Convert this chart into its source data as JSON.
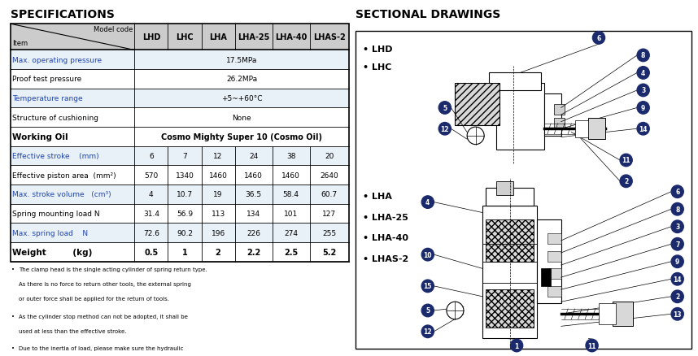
{
  "title_left": "SPECIFICATIONS",
  "title_right": "SECTIONAL DRAWINGS",
  "header_row": [
    "",
    "LHD",
    "LHC",
    "LHA",
    "LHA-25",
    "LHA-40",
    "LHAS-2"
  ],
  "header_label_top": "Model code",
  "header_label_bottom": "Item",
  "rows": [
    {
      "label": "Max. operating pressure",
      "values": [
        "17.5MPa"
      ],
      "span": true,
      "bold": false,
      "blue": true,
      "bg": "#e8f0f8"
    },
    {
      "label": "Proof test pressure",
      "values": [
        "26.2MPa"
      ],
      "span": true,
      "bold": false,
      "blue": false,
      "bg": "#ffffff"
    },
    {
      "label": "Temperature range",
      "values": [
        "+5~+60°C"
      ],
      "span": true,
      "bold": false,
      "blue": true,
      "bg": "#e8f0f8"
    },
    {
      "label": "Structure of cushioning",
      "values": [
        "None"
      ],
      "span": true,
      "bold": false,
      "blue": false,
      "bg": "#ffffff"
    },
    {
      "label": "Working Oil",
      "values": [
        "Cosmo Mighty Super 10 (Cosmo Oil)"
      ],
      "span": true,
      "bold": true,
      "blue": false,
      "bg": "#ffffff"
    },
    {
      "label": "Effective stroke    (mm)",
      "values": [
        "6",
        "7",
        "12",
        "24",
        "38",
        "20"
      ],
      "span": false,
      "bold": false,
      "blue": true,
      "bg": "#e8f0f8"
    },
    {
      "label": "Effective piston area  (mm²)",
      "values": [
        "570",
        "1340",
        "1460",
        "1460",
        "1460",
        "2640"
      ],
      "span": false,
      "bold": false,
      "blue": false,
      "bg": "#ffffff"
    },
    {
      "label": "Max. stroke volume   (cm³)",
      "values": [
        "4",
        "10.7",
        "19",
        "36.5",
        "58.4",
        "60.7"
      ],
      "span": false,
      "bold": false,
      "blue": true,
      "bg": "#e8f0f8"
    },
    {
      "label": "Spring mounting load N",
      "values": [
        "31.4",
        "56.9",
        "113",
        "134",
        "101",
        "127"
      ],
      "span": false,
      "bold": false,
      "blue": false,
      "bg": "#ffffff"
    },
    {
      "label": "Max. spring load    N",
      "values": [
        "72.6",
        "90.2",
        "196",
        "226",
        "274",
        "255"
      ],
      "span": false,
      "bold": false,
      "blue": true,
      "bg": "#e8f0f8"
    },
    {
      "label": "Weight         (kg)",
      "values": [
        "0.5",
        "1",
        "2",
        "2.2",
        "2.5",
        "5.2"
      ],
      "span": false,
      "bold": true,
      "blue": false,
      "bg": "#ffffff"
    }
  ],
  "notes": [
    "The clamp head is the single acting cylinder of spring return type.\nAs there is no force to return other tools, the external spring\nor outer force shall be applied for the return of tools.",
    "As the cylinder stop method can not be adopted, it shall be\nused at less than the effective stroke.",
    "Due to the inertia of load, please make sure the hydraulic\npressure which risen in the cylinder is under the proof test\npressure."
  ],
  "right_labels_top": [
    "• LHD",
    "• LHC"
  ],
  "right_labels_bottom": [
    "• LHA",
    "• LHA-25",
    "• LHA-40",
    "• LHAS-2"
  ],
  "bg_color": "#ffffff",
  "circle_color": "#1a2a6c",
  "blue_label_color": "#2244aa",
  "text_color": "#000000"
}
